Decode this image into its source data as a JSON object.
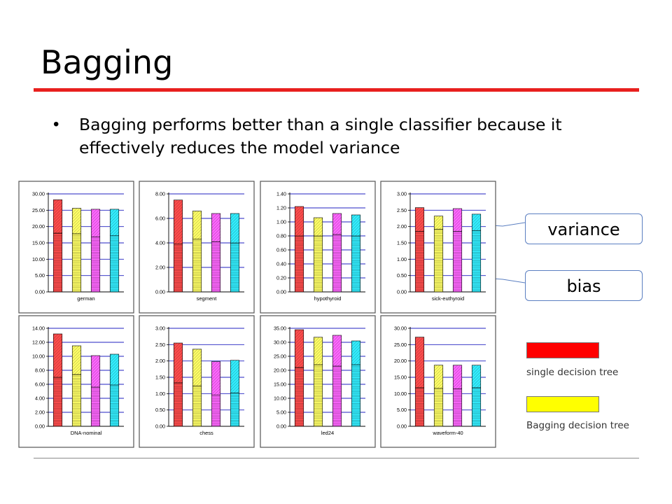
{
  "slide": {
    "title": "Bagging",
    "bullet": "Bagging performs better than a single classifier because it effectively reduces the model variance",
    "title_rule_color": "#e8201e"
  },
  "callouts": {
    "variance": "variance",
    "bias": "bias"
  },
  "legend": [
    {
      "label": "single decision tree",
      "color": "#ff0000"
    },
    {
      "label": "Bagging decision tree",
      "color": "#ffff00"
    }
  ],
  "series_colors": [
    "#ff4d4d",
    "#ffff66",
    "#ff66ff",
    "#33eeff"
  ],
  "chart_data": [
    {
      "type": "bar",
      "xlabel": "german",
      "ylim": [
        0,
        30
      ],
      "yticks": [
        "0.00",
        "5.00",
        "10.00",
        "15.00",
        "20.00",
        "25.00",
        "30.00"
      ],
      "totals": [
        28.2,
        25.6,
        25.3,
        25.3
      ],
      "bias": [
        18.0,
        17.8,
        16.8,
        17.2
      ]
    },
    {
      "type": "bar",
      "xlabel": "segment",
      "ylim": [
        0,
        8
      ],
      "yticks": [
        "0.00",
        "2.00",
        "4.00",
        "6.00",
        "8.00"
      ],
      "totals": [
        7.5,
        6.6,
        6.4,
        6.4
      ],
      "bias": [
        3.9,
        4.3,
        4.1,
        4.0
      ]
    },
    {
      "type": "bar",
      "xlabel": "hypothyroid",
      "ylim": [
        0,
        1.4
      ],
      "yticks": [
        "0.00",
        "0.20",
        "0.40",
        "0.60",
        "0.80",
        "1.00",
        "1.20",
        "1.40"
      ],
      "totals": [
        1.22,
        1.06,
        1.12,
        1.1
      ],
      "bias": [
        0.8,
        0.8,
        0.82,
        0.8
      ]
    },
    {
      "type": "bar",
      "xlabel": "sick-euthyroid",
      "ylim": [
        0,
        3
      ],
      "yticks": [
        "0.00",
        "0.50",
        "1.00",
        "1.50",
        "2.00",
        "2.50",
        "3.00"
      ],
      "totals": [
        2.58,
        2.32,
        2.55,
        2.38
      ],
      "bias": [
        1.85,
        1.92,
        1.85,
        1.88
      ]
    },
    {
      "type": "bar",
      "xlabel": "DNA-nominal",
      "ylim": [
        0,
        14
      ],
      "yticks": [
        "0.00",
        "2.00",
        "4.00",
        "6.00",
        "8.00",
        "10.00",
        "12.00",
        "14.00"
      ],
      "totals": [
        13.2,
        11.5,
        10.1,
        10.3
      ],
      "bias": [
        7.0,
        7.4,
        5.6,
        5.9
      ]
    },
    {
      "type": "bar",
      "xlabel": "chess",
      "ylim": [
        0,
        3
      ],
      "yticks": [
        "0.00",
        "0.50",
        "1.00",
        "1.50",
        "2.00",
        "2.50",
        "3.00"
      ],
      "totals": [
        2.55,
        2.36,
        1.98,
        2.02
      ],
      "bias": [
        1.33,
        1.24,
        0.96,
        1.02
      ]
    },
    {
      "type": "bar",
      "xlabel": "led24",
      "ylim": [
        0,
        35
      ],
      "yticks": [
        "0.00",
        "5.00",
        "10.00",
        "15.00",
        "20.00",
        "25.00",
        "30.00",
        "35.00"
      ],
      "totals": [
        34.5,
        31.8,
        32.5,
        30.5
      ],
      "bias": [
        21.0,
        22.0,
        21.5,
        22.0
      ]
    },
    {
      "type": "bar",
      "xlabel": "waveform-40",
      "ylim": [
        0,
        30
      ],
      "yticks": [
        "0.00",
        "5.00",
        "10.00",
        "15.00",
        "20.00",
        "25.00",
        "30.00"
      ],
      "totals": [
        27.3,
        18.7,
        18.7,
        18.7
      ],
      "bias": [
        11.8,
        11.6,
        11.5,
        11.8
      ]
    }
  ]
}
